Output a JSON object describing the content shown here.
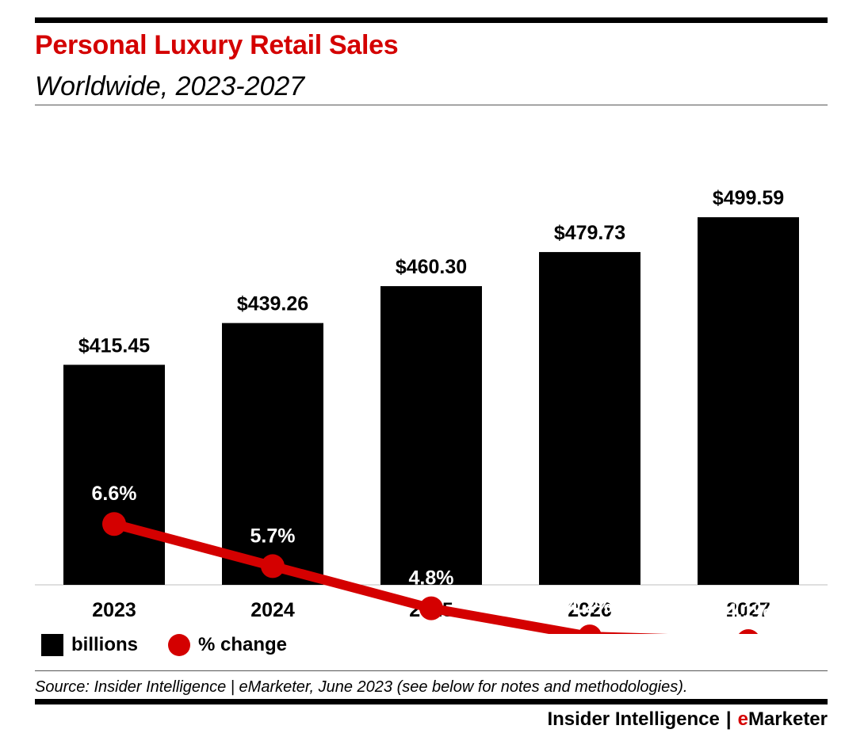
{
  "header": {
    "title": "Personal Luxury Retail Sales",
    "subtitle": "Worldwide, 2023-2027"
  },
  "colors": {
    "accent": "#d40000",
    "bars": "#000000",
    "line": "#d40000"
  },
  "chart_data": {
    "type": "bar",
    "categories": [
      "2023",
      "2024",
      "2025",
      "2026",
      "2027"
    ],
    "series": [
      {
        "name": "billions",
        "type": "bar",
        "values": [
          415.45,
          439.26,
          460.3,
          479.73,
          499.59
        ],
        "labels": [
          "$415.45",
          "$439.26",
          "$460.30",
          "$479.73",
          "$499.59"
        ]
      },
      {
        "name": "% change",
        "type": "line",
        "values": [
          6.6,
          5.7,
          4.8,
          4.2,
          4.1
        ],
        "labels": [
          "6.6%",
          "5.7%",
          "4.8%",
          "4.2%",
          "4.1%"
        ]
      }
    ],
    "grid": false,
    "legend_position": "bottom-left"
  },
  "legend": {
    "bar_label": "billions",
    "line_label": "% change"
  },
  "footer": {
    "source": "Source: Insider Intelligence | eMarketer, June 2023 (see below for notes and methodologies).",
    "brand_left": "Insider Intelligence",
    "brand_sep": "|",
    "brand_e": "e",
    "brand_right": "Marketer"
  }
}
